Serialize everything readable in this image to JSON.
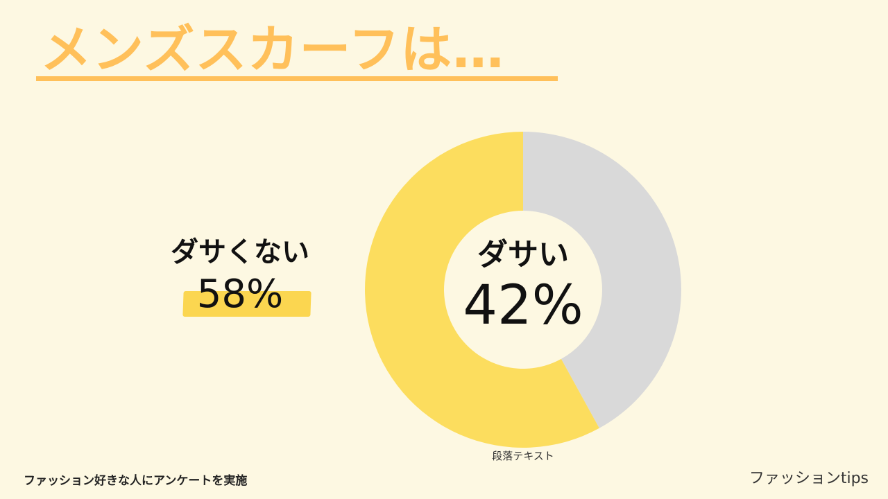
{
  "title": "メンズスカーフは…",
  "colors": {
    "background": "#fdf8e2",
    "title": "#ffc05a",
    "highlight": "#fbd650",
    "slice_not_dasai": "#fcdd5e",
    "slice_dasai": "#d9d9d9"
  },
  "chart_data": {
    "type": "pie",
    "donut": true,
    "title": "",
    "labels": [
      "ダサい",
      "ダサくない"
    ],
    "values": [
      42,
      58
    ],
    "unit": "%",
    "colors": [
      "#d9d9d9",
      "#fcdd5e"
    ],
    "annotations": [
      {
        "label": "ダサい",
        "value": "42%",
        "placement": "center"
      },
      {
        "label": "ダサくない",
        "value": "58%",
        "placement": "left"
      }
    ]
  },
  "labels": {
    "not_dasai_label": "ダサくない",
    "not_dasai_pct": "58%",
    "dasai_label": "ダサい",
    "dasai_pct": "42%",
    "paragraph_text": "段落テキスト"
  },
  "footer": {
    "note": "ファッション好きな人にアンケートを実施",
    "brand": "ファッションtips"
  }
}
